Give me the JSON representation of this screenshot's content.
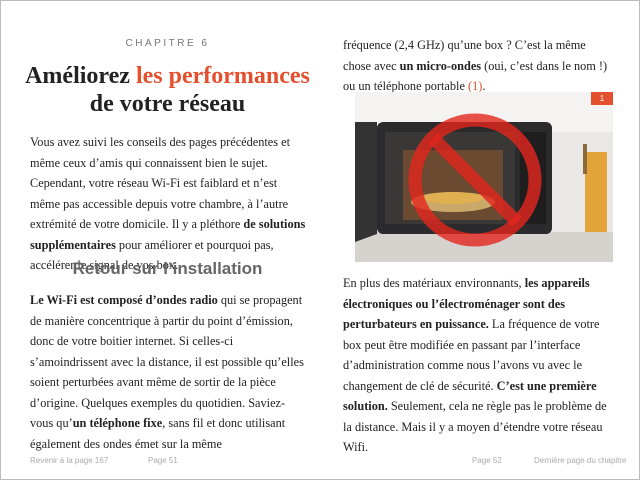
{
  "left_page": {
    "chapter": "CHAPITRE 6",
    "title_line1": [
      {
        "text": "Améliorez ",
        "style": "normal"
      },
      {
        "text": "les performances",
        "style": "accent"
      }
    ],
    "title_line2": "de votre réseau",
    "paragraphs": [
      [
        {
          "text": "Vous avez suivi les conseils des pages précédentes et même ceux d’amis qui connaissent bien le sujet. Cependant, votre réseau Wi-Fi est faiblard et n’est même pas accessible depuis votre chambre, à l’autre extrémité de votre domicile. Il y a pléthore ",
          "style": "normal"
        },
        {
          "text": "de solutions supplémentaires",
          "style": "bold"
        },
        {
          "text": " pour améliorer et pourquoi pas, accélérer le signal de vos box.",
          "style": "normal"
        }
      ]
    ],
    "heading": "Retour sur l’installation",
    "paragraphs_after": [
      [
        {
          "text": "Le Wi-Fi est composé d’ondes radio",
          "style": "bold"
        },
        {
          "text": " qui se propagent de manière concentrique à partir du point d’émission, donc de votre boitier internet. Si celles-ci s’amoindrissent avec la distance, il est possible qu’elles soient perturbées avant même de sortir de la pièce d’origine. Quelques exemples du quotidien. Saviez-vous qu’",
          "style": "normal"
        },
        {
          "text": "un téléphone fixe",
          "style": "bold"
        },
        {
          "text": ", sans fil et donc utilisant également des ondes émet sur la même",
          "style": "normal"
        }
      ]
    ]
  },
  "right_page": {
    "paragraphs": [
      [
        {
          "text": "fréquence (2,4 GHz) qu’une box ? C’est la même chose avec ",
          "style": "normal"
        },
        {
          "text": "un micro-ondes",
          "style": "bold"
        },
        {
          "text": " (oui, c’est dans le nom !) ou un téléphone portable ",
          "style": "normal"
        },
        {
          "text": "(1)",
          "style": "link"
        },
        {
          "text": ".",
          "style": "normal"
        }
      ]
    ],
    "image_badge": "1",
    "paragraphs_after": [
      [
        {
          "text": "En plus des matériaux environnants, ",
          "style": "normal"
        },
        {
          "text": "les appareils électroniques ou l’électroménager sont des perturbateurs en puissance.",
          "style": "bold"
        },
        {
          "text": " La fréquence de votre box peut être modifiée en passant par l’interface d’administration comme nous l’avons vu avec le changement de clé de sécurité. ",
          "style": "normal"
        },
        {
          "text": "C’est une première solution.",
          "style": "bold"
        },
        {
          "text": " Seulement, cela ne règle pas le problème de la distance. Mais il y a moyen d’étendre votre réseau Wifi.",
          "style": "normal"
        }
      ]
    ]
  },
  "footer": {
    "back_link": "Revenir à la page 167",
    "left_page_number": "Page 51",
    "right_page_number": "Page 52",
    "end_link": "Dernière page du chapitre"
  }
}
